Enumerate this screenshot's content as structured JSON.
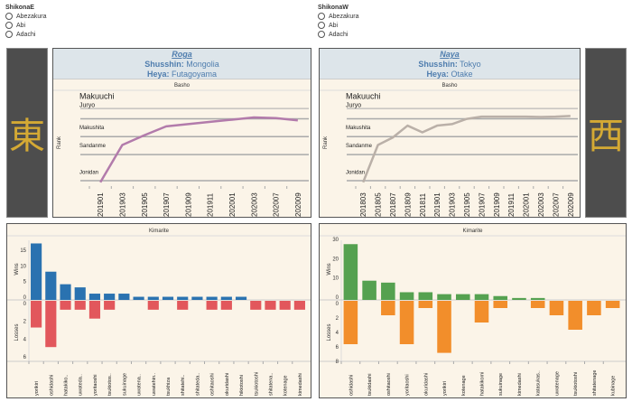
{
  "east": {
    "selector": {
      "title": "ShikonaE",
      "options": [
        "Abezakura",
        "Abi",
        "Adachi"
      ]
    },
    "banner": "東",
    "rikishi": {
      "name": "Roga",
      "shusshin_label": "Shusshin:",
      "shusshin": "Mongolia",
      "heya_label": "Heya:",
      "heya": "Futagoyama"
    },
    "line_color": "#b27bab"
  },
  "west": {
    "selector": {
      "title": "ShikonaW",
      "options": [
        "Abezakura",
        "Abi",
        "Adachi"
      ]
    },
    "banner": "西",
    "rikishi": {
      "name": "Naya",
      "shusshin_label": "Shusshin:",
      "shusshin": "Tokyo",
      "heya_label": "Heya:",
      "heya": "Otake"
    },
    "line_color": "#bab0a8"
  },
  "chart_data": [
    {
      "type": "line",
      "title": "Basho",
      "ylabel": "Rank",
      "rank_levels": [
        "Makuuchi",
        "Juryo",
        "Makushita",
        "Sandanme",
        "Jonidan"
      ],
      "rank_scale_note": "y: 0=Makuuchi boundary, 1=Juryo, 2=Makushita, 3=Sandanme, 5=Jonidan",
      "x": [
        "201901",
        "201903",
        "201905",
        "201907",
        "201909",
        "201911",
        "202001",
        "202003",
        "202007",
        "202009"
      ],
      "values": [
        5.5,
        3.0,
        2.35,
        1.75,
        1.6,
        1.45,
        1.3,
        1.15,
        1.2,
        1.35
      ]
    },
    {
      "type": "line",
      "title": "Basho",
      "ylabel": "Rank",
      "rank_levels": [
        "Makuuchi",
        "Juryo",
        "Makushita",
        "Sandanme",
        "Jonidan"
      ],
      "x": [
        "201803",
        "201805",
        "201807",
        "201809",
        "201811",
        "201901",
        "201903",
        "201905",
        "201907",
        "201909",
        "201911",
        "202001",
        "202003",
        "202007",
        "202009"
      ],
      "values": [
        5.5,
        3.0,
        2.5,
        1.7,
        2.15,
        1.7,
        1.6,
        1.25,
        1.1,
        1.1,
        1.1,
        1.1,
        1.12,
        1.1,
        1.05
      ]
    },
    {
      "type": "bar",
      "title": "Kimarite",
      "top_label": "Wins",
      "bottom_label": "Losses",
      "win_color": "#2a72b0",
      "loss_color": "#e2575c",
      "wins_ticks": [
        0,
        5,
        10,
        15
      ],
      "losses_ticks": [
        0,
        2,
        4,
        6
      ],
      "wins_max": 19,
      "losses_max": 6.5,
      "categories": [
        "yorikiri",
        "oshidashi",
        "hatakiko..",
        "uwateda..",
        "yoritaoshi",
        "tsukiotos..",
        "sukuinage",
        "uwatena..",
        "uwatehin..",
        "tsukhiza",
        "shitatehi..",
        "shitateda..",
        "oshitaoshi",
        "okuridashi",
        "hikiotoshi",
        "tsukiotoshi",
        "shitatena..",
        "kotenage",
        "kimedashi"
      ],
      "wins": [
        18,
        9,
        5,
        4,
        2,
        2,
        2,
        1,
        1,
        1,
        1,
        1,
        1,
        1,
        1,
        0,
        0,
        0,
        0
      ],
      "losses": [
        3,
        5.2,
        1,
        1,
        2,
        1,
        0,
        0,
        1,
        0,
        1,
        0,
        1,
        1,
        0,
        1,
        1,
        1,
        1
      ]
    },
    {
      "type": "bar",
      "title": "Kimarite",
      "top_label": "Wins",
      "bottom_label": "Losses",
      "win_color": "#55a150",
      "loss_color": "#f28e2b",
      "wins_ticks": [
        0,
        10,
        20,
        30
      ],
      "losses_ticks": [
        0,
        2,
        4,
        6,
        8
      ],
      "wins_max": 31,
      "losses_max": 8,
      "categories": [
        "oshidashi",
        "tsukidashi",
        "oshitaoshi",
        "yoritaoshi",
        "okuridashi",
        "yorikiri",
        "kotenage",
        "hatakikomi",
        "sukuinage",
        "kimedashi",
        "katasukas..",
        "uwatenage",
        "tsukiotoshi",
        "shitatenage",
        "kubinage"
      ],
      "wins": [
        29,
        10,
        9,
        4,
        4,
        3,
        3,
        3,
        2,
        1,
        1,
        0,
        0,
        0,
        0
      ],
      "losses": [
        6,
        0,
        2,
        6,
        1,
        7.2,
        0,
        3,
        1,
        0,
        1,
        2,
        4,
        2,
        1
      ]
    }
  ]
}
